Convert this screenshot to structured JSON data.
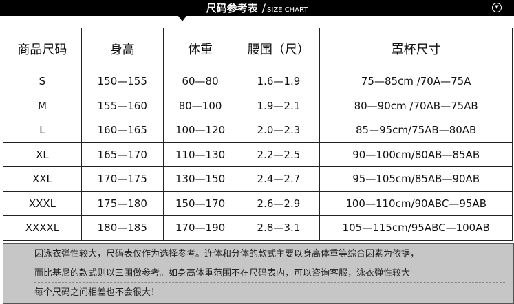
{
  "header": {
    "title": "尺码参考表",
    "slash": "/",
    "subtitle": "SIZE CHART",
    "icon": "chevron-down-circle-icon"
  },
  "table": {
    "columns": [
      "商品尺码",
      "身高",
      "体重",
      "腰围（尺）",
      "罩杯尺寸"
    ],
    "rows": [
      [
        "S",
        "150—155",
        "60—80",
        "1.6—1.9",
        "75—85cm /70A—75A"
      ],
      [
        "M",
        "155—160",
        "80—100",
        "1.9—2.1",
        "80—90cm /70AB—75AB"
      ],
      [
        "L",
        "160—165",
        "100—120",
        "2.0—2.3",
        "85—95cm/75AB—80AB"
      ],
      [
        "XL",
        "165—170",
        "110—130",
        "2.2—2.5",
        "90—100cm/80AB—85AB"
      ],
      [
        "XXL",
        "170—175",
        "130—150",
        "2.4—2.7",
        "95—105cm/85AB—90AB"
      ],
      [
        "XXXL",
        "175—180",
        "150—170",
        "2.6—2.9",
        "100—110cm/90ABC—95AB"
      ],
      [
        "XXXXL",
        "180—185",
        "170—190",
        "2.8—3.1",
        "105—115cm/95ABC—100AB"
      ]
    ]
  },
  "note": {
    "lines": [
      "因泳衣弹性较大，尺码表仅作为选择参考。连体和分体的款式主要以身高体重等综合因素为依据，",
      "而比基尼的款式则以三围做参考。如身高体重范围不在尺码表内，可以咨询客服，泳衣弹性较大",
      "每个尺码之间相差也不会很大！"
    ]
  }
}
